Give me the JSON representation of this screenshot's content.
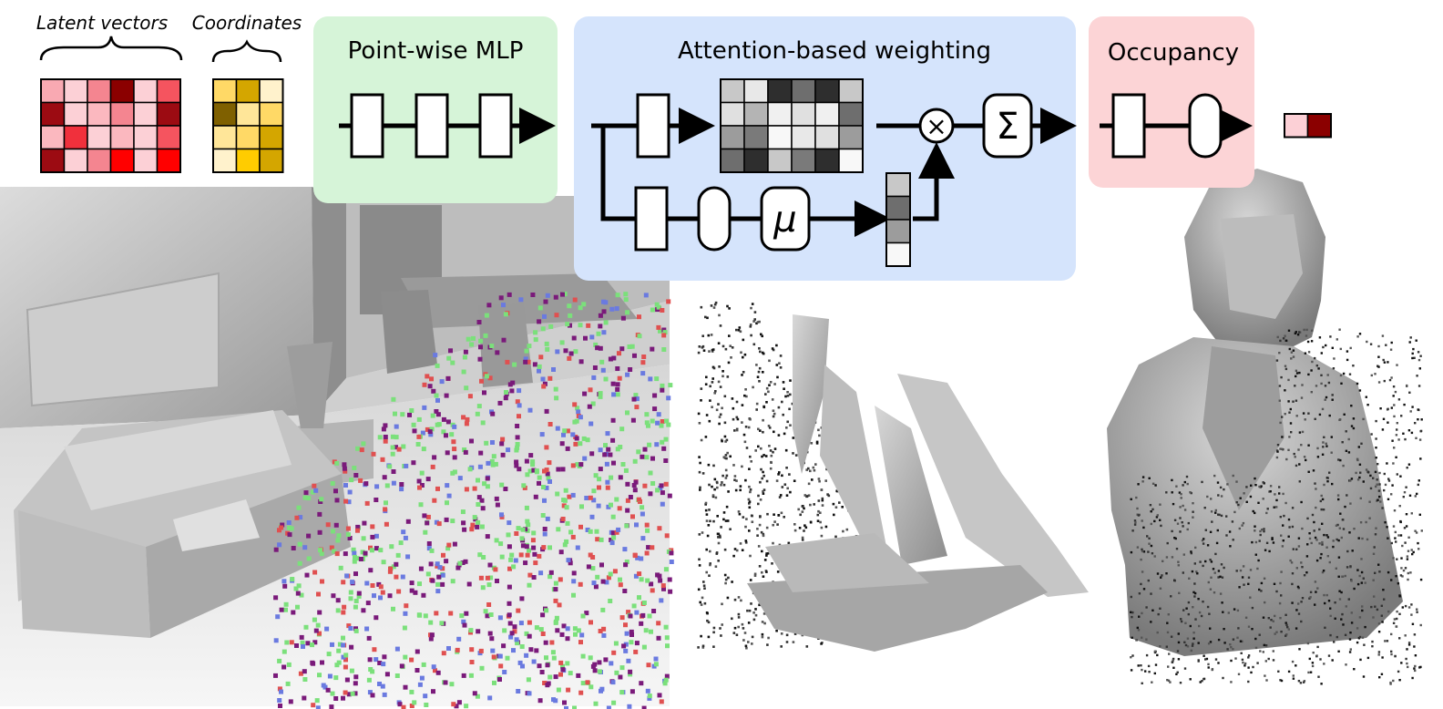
{
  "labels": {
    "latent_vectors": "Latent vectors",
    "coordinates": "Coordinates",
    "pointwise_mlp": "Point-wise MLP",
    "attention_weighting": "Attention-based weighting",
    "occupancy": "Occupancy",
    "mu_symbol": "μ",
    "sum_symbol": "Σ",
    "times_symbol": "×"
  },
  "colors": {
    "mlp_panel": "#d6f4d8",
    "attention_panel": "#d5e4fc",
    "occupancy_panel": "#fcd4d6",
    "stroke": "#000000",
    "mesh_light": "#e6e6e6",
    "mesh_mid": "#b0b0b0",
    "mesh_dark": "#6f6f6f",
    "point_green": "#7be07b",
    "point_purple": "#7a1a7a",
    "point_red": "#e05050",
    "point_blue": "#6a7ae0"
  },
  "grids": {
    "latent": [
      [
        "#f9a9b2",
        "#fcd0d6",
        "#f48590",
        "#8b0000",
        "#fcd0d6",
        "#f5545f"
      ],
      [
        "#9c0b12",
        "#fcd0d6",
        "#fbb8bf",
        "#f48590",
        "#fcd0d6",
        "#9c0b12"
      ],
      [
        "#fbb8bf",
        "#f0303c",
        "#fcd0d6",
        "#fbb8bf",
        "#fcd0d6",
        "#f5545f"
      ],
      [
        "#9c0b12",
        "#fcd0d6",
        "#f48590",
        "#ff0000",
        "#fcd0d6",
        "#ff0000"
      ]
    ],
    "coordinates": [
      [
        "#ffd966",
        "#d4a600",
        "#fff2cc"
      ],
      [
        "#7f6000",
        "#ffe699",
        "#ffd966"
      ],
      [
        "#ffe699",
        "#ffd966",
        "#d4a600"
      ],
      [
        "#fff2cc",
        "#ffcc00",
        "#d4a600"
      ]
    ],
    "attention": [
      [
        "#c8c8c8",
        "#e8e8e8",
        "#2e2e2e",
        "#6e6e6e",
        "#2e2e2e",
        "#c8c8c8"
      ],
      [
        "#e0e0e0",
        "#b4b4b4",
        "#f0f0f0",
        "#e0e0e0",
        "#f0f0f0",
        "#6e6e6e"
      ],
      [
        "#9c9c9c",
        "#7a7a7a",
        "#f8f8f8",
        "#e8e8e8",
        "#e0e0e0",
        "#9c9c9c"
      ],
      [
        "#6e6e6e",
        "#2e2e2e",
        "#c8c8c8",
        "#7a7a7a",
        "#2e2e2e",
        "#f8f8f8"
      ]
    ],
    "mu_column": [
      "#c8c8c8",
      "#6e6e6e",
      "#9c9c9c",
      "#f8f8f8"
    ],
    "output": [
      "#fcd0d6",
      "#8b0000"
    ]
  }
}
